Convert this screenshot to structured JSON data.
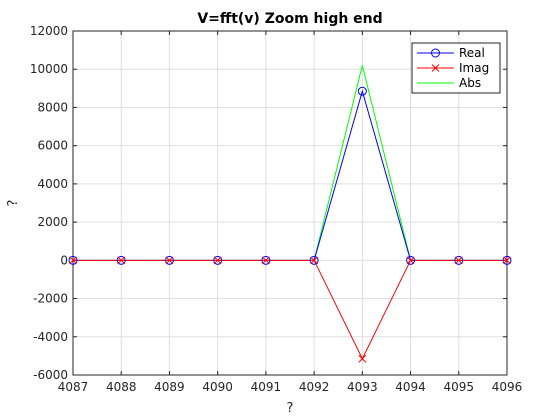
{
  "chart_data": {
    "type": "line",
    "title": "V=fft(v) Zoom high end",
    "xlabel": "?",
    "ylabel": "?",
    "xlim": [
      4087,
      4096
    ],
    "ylim": [
      -6000,
      12000
    ],
    "x_ticks": [
      4087,
      4088,
      4089,
      4090,
      4091,
      4092,
      4093,
      4094,
      4095,
      4096
    ],
    "y_ticks": [
      -6000,
      -4000,
      -2000,
      0,
      2000,
      4000,
      6000,
      8000,
      10000,
      12000
    ],
    "grid": true,
    "legend_position": "top-right",
    "x": [
      4087,
      4088,
      4089,
      4090,
      4091,
      4092,
      4093,
      4094,
      4095,
      4096
    ],
    "series": [
      {
        "name": "Real",
        "color": "#0000ff",
        "marker": "circle",
        "values": [
          0,
          0,
          0,
          0,
          0,
          0,
          8850,
          0,
          0,
          0
        ]
      },
      {
        "name": "Imag",
        "color": "#ff0000",
        "marker": "x",
        "values": [
          0,
          0,
          0,
          0,
          0,
          0,
          -5150,
          0,
          0,
          0
        ]
      },
      {
        "name": "Abs",
        "color": "#00ff00",
        "marker": "none",
        "values": [
          0,
          0,
          0,
          0,
          0,
          0,
          10200,
          0,
          0,
          0
        ]
      }
    ]
  }
}
